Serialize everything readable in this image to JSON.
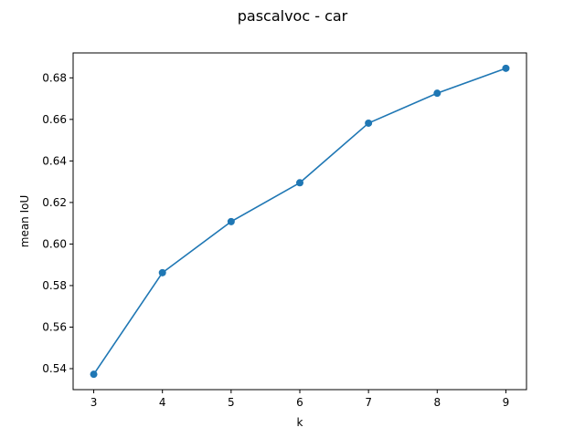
{
  "chart_data": {
    "type": "line",
    "title": "pascalvoc - car",
    "xlabel": "k",
    "ylabel": "mean IoU",
    "x": [
      3,
      4,
      5,
      6,
      7,
      8,
      9
    ],
    "series": [
      {
        "values": [
          0.5373,
          0.5862,
          0.6108,
          0.6295,
          0.6582,
          0.6726,
          0.6846
        ],
        "color": "#1f77b4",
        "marker": "circle"
      }
    ],
    "xticks": [
      3,
      4,
      5,
      6,
      7,
      8,
      9
    ],
    "yticks": [
      0.54,
      0.56,
      0.58,
      0.6,
      0.62,
      0.64,
      0.66,
      0.68
    ],
    "ytick_labels": [
      "0.54",
      "0.56",
      "0.58",
      "0.60",
      "0.62",
      "0.64",
      "0.66",
      "0.68"
    ],
    "xlim": [
      2.7,
      9.3
    ],
    "ylim": [
      0.5299,
      0.692
    ],
    "grid": false,
    "legend": "none"
  }
}
